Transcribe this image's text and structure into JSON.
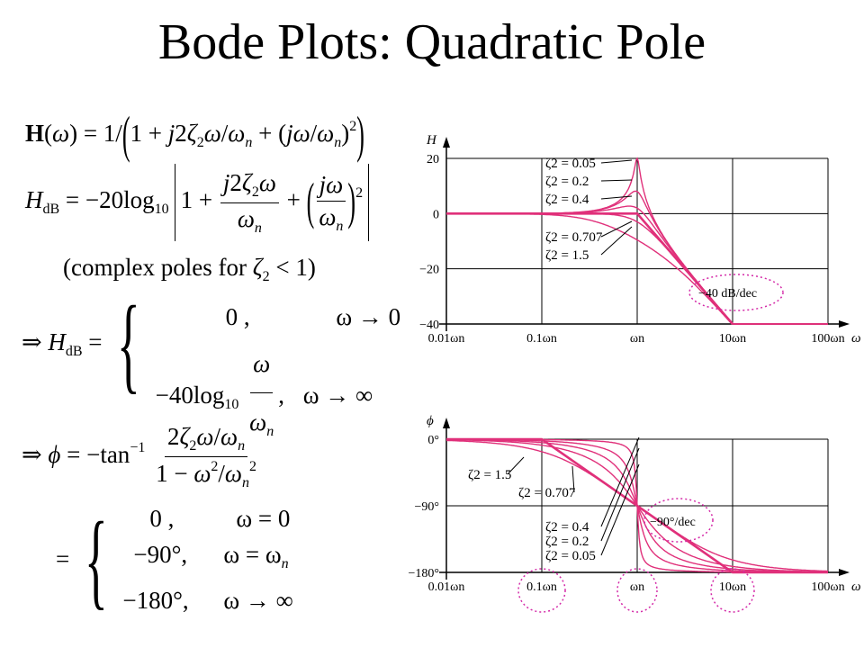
{
  "title": "Bode Plots: Quadratic Pole",
  "equations": {
    "complex_poles_note": "(complex poles for",
    "note_tail": "< 1)",
    "HdB_case0_value": "0 ,",
    "HdB_case0_cond": "ω → 0",
    "HdB_case_inf_cond": "ω → ∞",
    "phi_case1_value": "0 ,",
    "phi_case1_cond": "ω = 0",
    "phi_case2_value": "−90°,",
    "phi_case2_cond": "ω = ω",
    "phi_case3_value": "−180°,",
    "phi_case3_cond": "ω → ∞"
  },
  "chart_data": [
    {
      "type": "line",
      "title": "",
      "ylabel": "H",
      "xlabel": "ω",
      "x_scale": "log",
      "x_ticks": [
        "0.01ωn",
        "0.1ωn",
        "ωn",
        "10ωn",
        "100ωn"
      ],
      "x_tick_values": [
        0.01,
        0.1,
        1,
        10,
        100
      ],
      "y_ticks": [
        "20",
        "0",
        "−20",
        "−40"
      ],
      "y_tick_values": [
        20,
        0,
        -20,
        -40
      ],
      "ylim": [
        -40,
        20
      ],
      "xlim": [
        0.01,
        100
      ],
      "grid": true,
      "series": [
        {
          "name": "ζ2 = 0.05",
          "zeta": 0.05
        },
        {
          "name": "ζ2 = 0.2",
          "zeta": 0.2
        },
        {
          "name": "ζ2 = 0.4",
          "zeta": 0.4
        },
        {
          "name": "ζ2 = 0.707",
          "zeta": 0.707
        },
        {
          "name": "ζ2 = 1.5",
          "zeta": 1.5
        }
      ],
      "asymptote": {
        "x": [
          0.01,
          1,
          10
        ],
        "y": [
          0,
          0,
          -40
        ]
      },
      "annotations": [
        "−40 dB/dec"
      ],
      "line_color": "#e0307a"
    },
    {
      "type": "line",
      "title": "",
      "ylabel": "ϕ",
      "xlabel": "ω",
      "x_scale": "log",
      "x_ticks": [
        "0.01ωn",
        "0.1ωn",
        "ωn",
        "10ωn",
        "100ωn"
      ],
      "x_tick_values": [
        0.01,
        0.1,
        1,
        10,
        100
      ],
      "y_ticks": [
        "0°",
        "−90°",
        "−180°"
      ],
      "y_tick_values": [
        0,
        -90,
        -180
      ],
      "ylim": [
        -180,
        0
      ],
      "xlim": [
        0.01,
        100
      ],
      "grid": true,
      "series": [
        {
          "name": "ζ2 = 1.5",
          "zeta": 1.5
        },
        {
          "name": "ζ2 = 0.707",
          "zeta": 0.707
        },
        {
          "name": "ζ2 = 0.4",
          "zeta": 0.4
        },
        {
          "name": "ζ2 = 0.2",
          "zeta": 0.2
        },
        {
          "name": "ζ2 = 0.05",
          "zeta": 0.05
        }
      ],
      "asymptote": {
        "x": [
          0.01,
          0.1,
          10,
          100
        ],
        "y": [
          0,
          0,
          -180,
          -180
        ]
      },
      "annotations": [
        "−90°/dec"
      ],
      "line_color": "#e0307a"
    }
  ]
}
